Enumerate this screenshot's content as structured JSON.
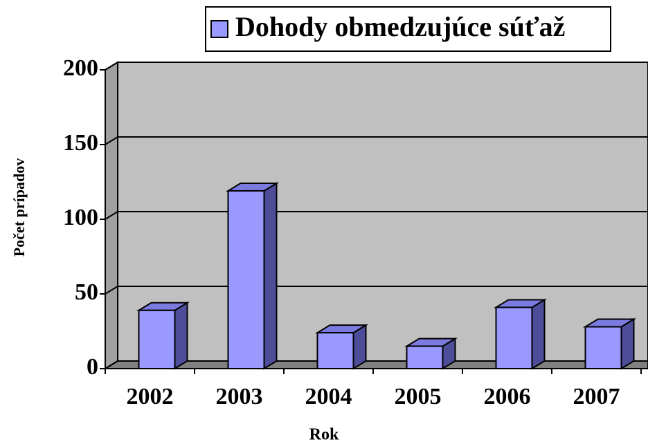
{
  "chart_data": {
    "type": "bar",
    "title": null,
    "legend": "Dohody obmedzujúce súťaž",
    "x_label": "Rok",
    "y_label": "Počet prípadov",
    "categories": [
      "2002",
      "2003",
      "2004",
      "2005",
      "2006",
      "2007"
    ],
    "series": [
      {
        "name": "Dohody obmedzujúce súťaž",
        "color": "#9999ff",
        "values": [
          39,
          119,
          24,
          15,
          41,
          28
        ]
      }
    ],
    "ylim": [
      0,
      200
    ],
    "yticks": [
      0,
      50,
      100,
      150,
      200
    ],
    "grid": true,
    "legend_position": "top"
  }
}
